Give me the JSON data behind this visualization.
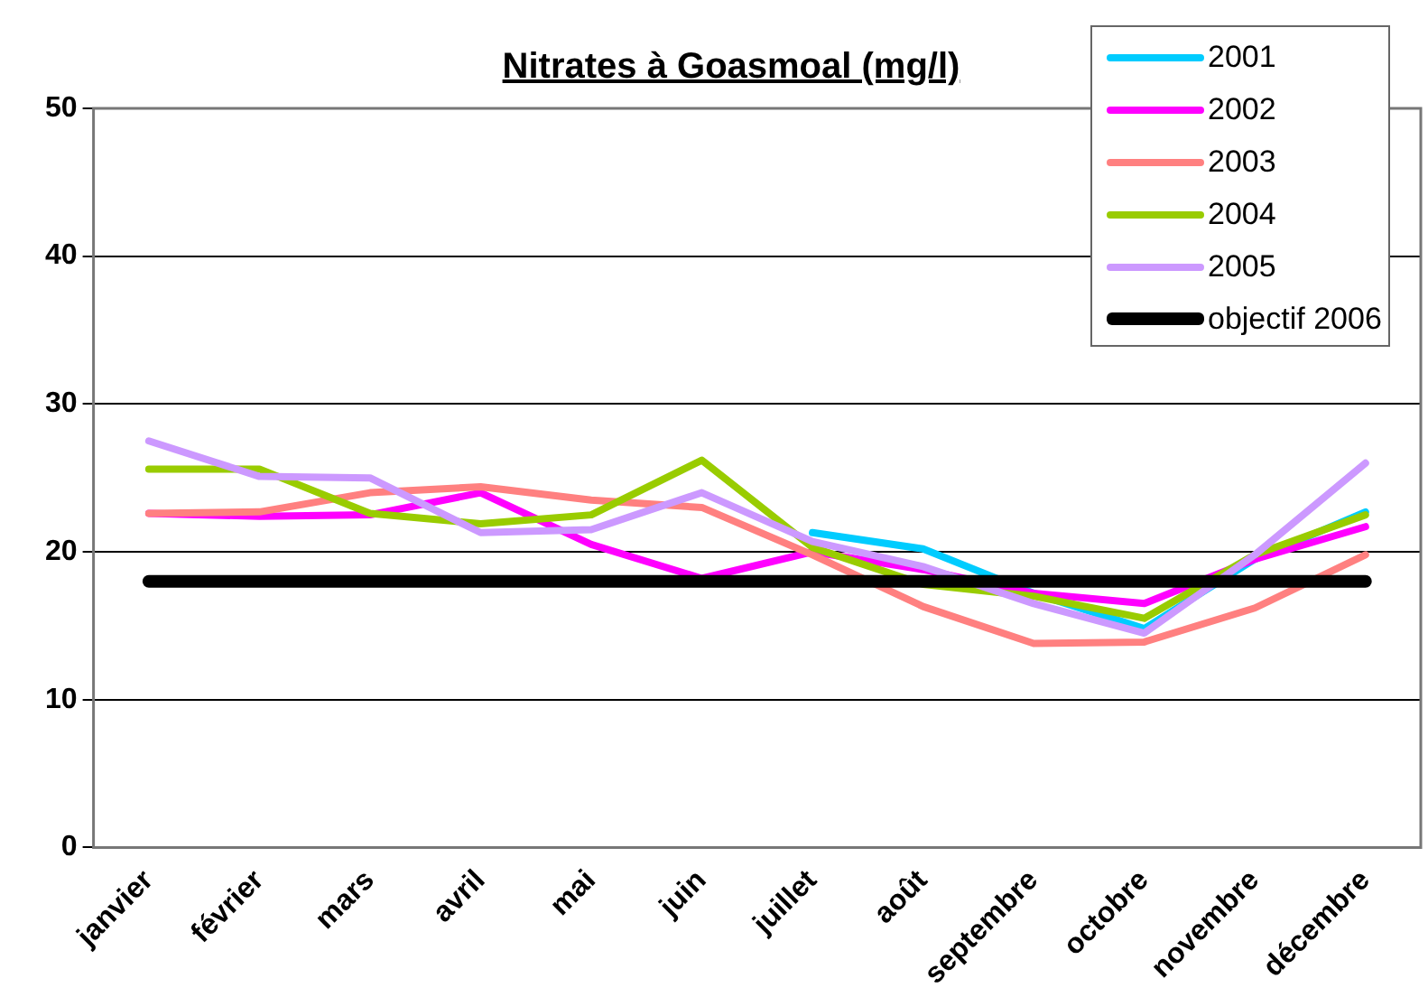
{
  "chart_data": {
    "type": "line",
    "title": "Nitrates à Goasmoal (mg/l)",
    "categories": [
      "janvier",
      "février",
      "mars",
      "avril",
      "mai",
      "juin",
      "juillet",
      "août",
      "septembre",
      "octobre",
      "novembre",
      "décembre"
    ],
    "series": [
      {
        "name": "2001",
        "color": "#00ccff",
        "values": [
          null,
          null,
          null,
          null,
          null,
          null,
          21.3,
          20.2,
          17.2,
          14.8,
          19.5,
          22.7
        ]
      },
      {
        "name": "2002",
        "color": "#ff00ff",
        "values": [
          22.6,
          22.4,
          22.5,
          24.0,
          20.5,
          18.2,
          20.0,
          18.8,
          17.2,
          16.5,
          19.5,
          21.7
        ]
      },
      {
        "name": "2003",
        "color": "#ff8080",
        "values": [
          22.6,
          22.7,
          24.0,
          24.4,
          23.5,
          23.0,
          19.8,
          16.3,
          13.8,
          13.9,
          16.2,
          19.8
        ]
      },
      {
        "name": "2004",
        "color": "#99cc00",
        "values": [
          25.6,
          25.6,
          22.6,
          21.9,
          22.5,
          26.2,
          20.3,
          17.8,
          17.0,
          15.5,
          19.8,
          22.5
        ]
      },
      {
        "name": "2005",
        "color": "#cc99ff",
        "values": [
          27.5,
          25.1,
          25.0,
          21.3,
          21.5,
          24.0,
          20.7,
          19.0,
          16.5,
          14.5,
          19.8,
          26.0
        ]
      },
      {
        "name": "objectif 2006",
        "color": "#000000",
        "values": [
          18,
          18,
          18,
          18,
          18,
          18,
          18,
          18,
          18,
          18,
          18,
          18
        ]
      }
    ],
    "ylim": [
      0,
      50
    ],
    "yticks": [
      0,
      10,
      20,
      30,
      40,
      50
    ],
    "grid": "y",
    "legend": "top right",
    "marker": "none",
    "line_style": "solid"
  }
}
